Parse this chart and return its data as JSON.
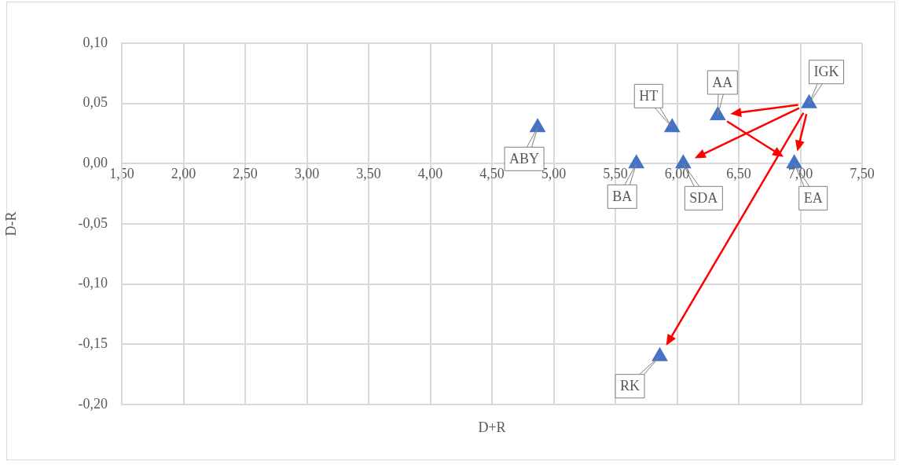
{
  "chart_data": {
    "type": "scatter",
    "xlabel": "D+R",
    "ylabel": "D-R",
    "series": [
      {
        "color": "#4472c4",
        "x": [
          4.87,
          5.67,
          5.96,
          6.05,
          6.33,
          7.07,
          6.95,
          5.86
        ],
        "values": [
          0.03,
          0.0,
          0.03,
          0.0,
          0.04,
          0.05,
          0.0,
          -0.16
        ]
      }
    ],
    "marker": "triangle",
    "grid": true,
    "legend": false,
    "xlim": [
      1.5,
      7.5
    ],
    "xticks": [
      {
        "value": 1.5,
        "label": "1,50"
      },
      {
        "value": 2,
        "label": "2,00"
      },
      {
        "value": 2.5,
        "label": "2,50"
      },
      {
        "value": 3,
        "label": "3,00"
      },
      {
        "value": 3.5,
        "label": "3,50"
      },
      {
        "value": 4,
        "label": "4,00"
      },
      {
        "value": 4.5,
        "label": "4,50"
      },
      {
        "value": 5,
        "label": "5,00"
      },
      {
        "value": 5.5,
        "label": "5,50"
      },
      {
        "value": 6,
        "label": "6,00"
      },
      {
        "value": 6.5,
        "label": "6,50"
      },
      {
        "value": 7,
        "label": "7,00"
      },
      {
        "value": 7.5,
        "label": "7,50"
      }
    ],
    "ylim": [
      -0.2,
      0.1
    ],
    "yticks": [
      {
        "value": -0.2,
        "label": "-0,20"
      },
      {
        "value": -0.15,
        "label": "-0,15"
      },
      {
        "value": -0.1,
        "label": "-0,10"
      },
      {
        "value": -0.05,
        "label": "-0,05"
      },
      {
        "value": 0,
        "label": "0,00"
      },
      {
        "value": 0.05,
        "label": "0,05"
      },
      {
        "value": 0.1,
        "label": "0,10"
      }
    ],
    "annotations": [
      {
        "text": "ABY",
        "x": 4.87,
        "y": 0.03
      },
      {
        "text": "BA",
        "x": 5.67,
        "y": 0.0
      },
      {
        "text": "HT",
        "x": 5.96,
        "y": 0.03
      },
      {
        "text": "SDA",
        "x": 6.05,
        "y": 0.0
      },
      {
        "text": "AA",
        "x": 6.33,
        "y": 0.04
      },
      {
        "text": "IGK",
        "x": 7.07,
        "y": 0.05
      },
      {
        "text": "EA",
        "x": 6.95,
        "y": 0.0
      },
      {
        "text": "RK",
        "x": 5.86,
        "y": -0.16
      }
    ]
  }
}
